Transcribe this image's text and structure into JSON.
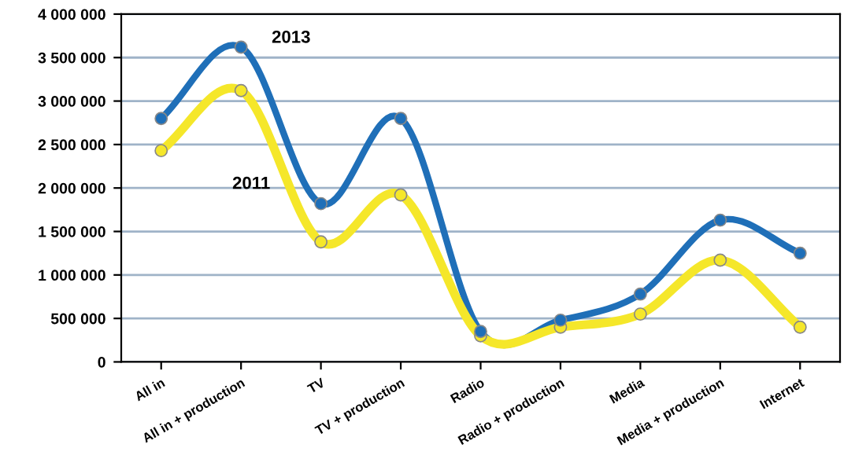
{
  "chart_data": {
    "type": "line",
    "categories": [
      "All in",
      "All in + production",
      "TV",
      "TV + production",
      "Radio",
      "Radio + production",
      "Media",
      "Media + production",
      "Internet"
    ],
    "series": [
      {
        "name": "2013",
        "color": "#1f6fb8",
        "values": [
          2800000,
          3620000,
          1820000,
          2800000,
          350000,
          480000,
          780000,
          1630000,
          1250000
        ]
      },
      {
        "name": "2011",
        "color": "#f5e72a",
        "values": [
          2430000,
          3120000,
          1380000,
          1920000,
          300000,
          400000,
          550000,
          1170000,
          400000
        ]
      }
    ],
    "ylim": [
      0,
      4000000
    ],
    "yticks": [
      {
        "value": 0,
        "label": "0"
      },
      {
        "value": 500000,
        "label": "500 000"
      },
      {
        "value": 1000000,
        "label": "1 000 000"
      },
      {
        "value": 1500000,
        "label": "1 500 000"
      },
      {
        "value": 2000000,
        "label": "2 000 000"
      },
      {
        "value": 2500000,
        "label": "2 500 000"
      },
      {
        "value": 3000000,
        "label": "3 000 000"
      },
      {
        "value": 3500000,
        "label": "3 500 000"
      },
      {
        "value": 4000000,
        "label": "4 000 000"
      }
    ],
    "grid": "y",
    "marker": "circle",
    "line_style": "solid",
    "legend": false
  }
}
